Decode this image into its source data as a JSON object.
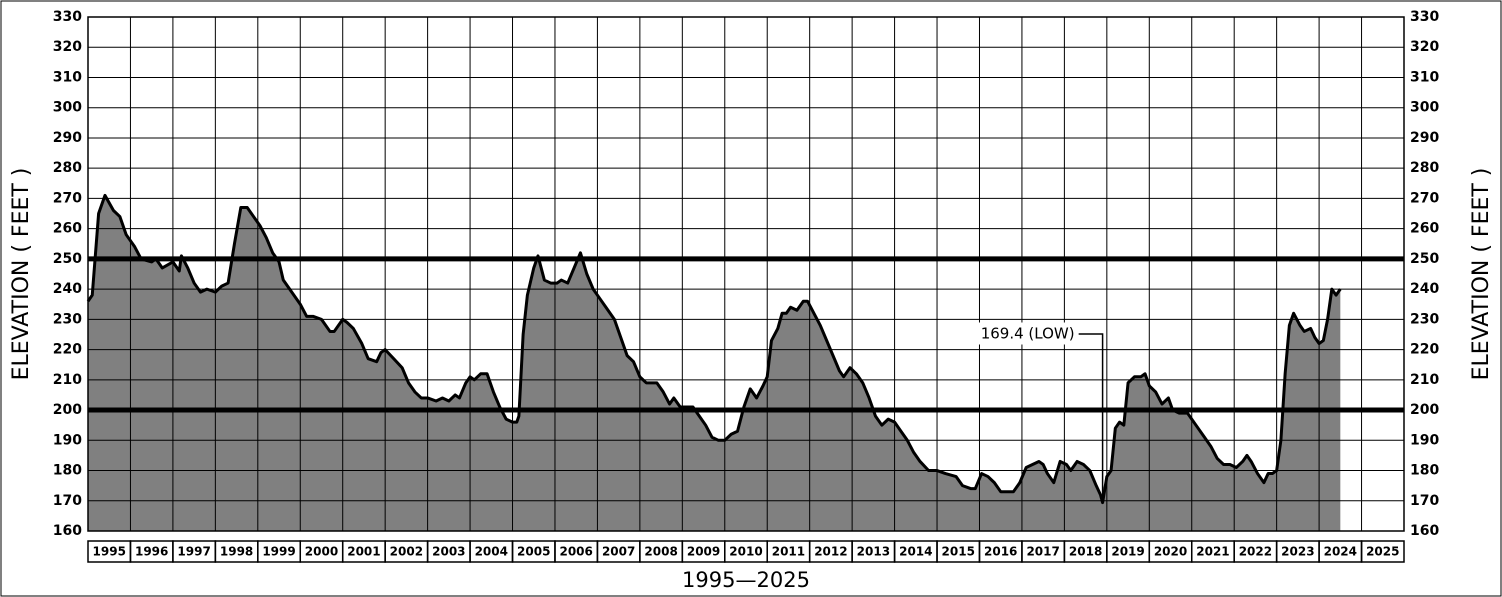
{
  "chart_data": {
    "type": "area",
    "y_label": "ELEVATION ( FEET )",
    "x_label": "1995—2025",
    "xlim": [
      1995,
      2026
    ],
    "xticks": [
      1995,
      1996,
      1997,
      1998,
      1999,
      2000,
      2001,
      2002,
      2003,
      2004,
      2005,
      2006,
      2007,
      2008,
      2009,
      2010,
      2011,
      2012,
      2013,
      2014,
      2015,
      2016,
      2017,
      2018,
      2019,
      2020,
      2021,
      2022,
      2023,
      2024,
      2025
    ],
    "ylim": [
      160,
      330
    ],
    "yticks": [
      160,
      170,
      180,
      190,
      200,
      210,
      220,
      230,
      240,
      250,
      260,
      270,
      280,
      290,
      300,
      310,
      320,
      330
    ],
    "grid": true,
    "color": "#808080",
    "line_color": "#000000",
    "reference_lines": [
      250,
      200
    ],
    "annotation": {
      "text": "169.4 (LOW)",
      "x": 2018.9,
      "value": 169.4
    },
    "x": [
      1995.0,
      1995.1,
      1995.25,
      1995.4,
      1995.6,
      1995.75,
      1995.9,
      1996.1,
      1996.25,
      1996.5,
      1996.6,
      1996.75,
      1997.0,
      1997.15,
      1997.2,
      1997.35,
      1997.5,
      1997.65,
      1997.8,
      1998.0,
      1998.15,
      1998.3,
      1998.45,
      1998.6,
      1998.75,
      1998.9,
      1999.05,
      1999.2,
      1999.35,
      1999.5,
      1999.6,
      1999.8,
      2000.0,
      2000.15,
      2000.3,
      2000.5,
      2000.7,
      2000.8,
      2001.0,
      2001.1,
      2001.25,
      2001.45,
      2001.6,
      2001.8,
      2001.9,
      2002.0,
      2002.2,
      2002.4,
      2002.55,
      2002.7,
      2002.85,
      2003.0,
      2003.2,
      2003.35,
      2003.5,
      2003.65,
      2003.75,
      2003.9,
      2004.0,
      2004.1,
      2004.25,
      2004.4,
      2004.55,
      2004.7,
      2004.85,
      2005.0,
      2005.1,
      2005.15,
      2005.25,
      2005.35,
      2005.5,
      2005.6,
      2005.75,
      2005.9,
      2006.05,
      2006.15,
      2006.3,
      2006.45,
      2006.6,
      2006.75,
      2006.9,
      2007.05,
      2007.2,
      2007.4,
      2007.55,
      2007.7,
      2007.85,
      2008.0,
      2008.15,
      2008.4,
      2008.55,
      2008.7,
      2008.8,
      2008.95,
      2009.1,
      2009.25,
      2009.4,
      2009.55,
      2009.7,
      2009.85,
      2010.0,
      2010.15,
      2010.3,
      2010.45,
      2010.6,
      2010.75,
      2010.9,
      2011.0,
      2011.1,
      2011.25,
      2011.35,
      2011.45,
      2011.55,
      2011.7,
      2011.85,
      2011.95,
      2012.1,
      2012.25,
      2012.4,
      2012.55,
      2012.7,
      2012.8,
      2012.95,
      2013.1,
      2013.25,
      2013.4,
      2013.55,
      2013.7,
      2013.85,
      2014.0,
      2014.15,
      2014.3,
      2014.45,
      2014.6,
      2014.8,
      2015.0,
      2015.2,
      2015.45,
      2015.6,
      2015.8,
      2015.9,
      2016.05,
      2016.2,
      2016.35,
      2016.5,
      2016.65,
      2016.8,
      2016.95,
      2017.1,
      2017.25,
      2017.4,
      2017.5,
      2017.6,
      2017.75,
      2017.9,
      2018.05,
      2018.15,
      2018.3,
      2018.45,
      2018.6,
      2018.75,
      2018.85,
      2018.9,
      2019.0,
      2019.1,
      2019.2,
      2019.3,
      2019.4,
      2019.5,
      2019.65,
      2019.8,
      2019.9,
      2020.0,
      2020.15,
      2020.3,
      2020.45,
      2020.55,
      2020.7,
      2020.9,
      2021.1,
      2021.3,
      2021.45,
      2021.6,
      2021.75,
      2021.9,
      2022.05,
      2022.2,
      2022.3,
      2022.4,
      2022.55,
      2022.7,
      2022.8,
      2022.9,
      2023.0,
      2023.1,
      2023.2,
      2023.3,
      2023.4,
      2023.55,
      2023.65,
      2023.8,
      2023.9,
      2024.0,
      2024.1,
      2024.2,
      2024.3,
      2024.4,
      2024.5
    ],
    "series": [
      {
        "name": "Elevation",
        "values": [
          236,
          238,
          265,
          271,
          266,
          264,
          258,
          254,
          250,
          249,
          250,
          247,
          249,
          246,
          251,
          247,
          242,
          239,
          240,
          239,
          241,
          242,
          255,
          267,
          267,
          264,
          261,
          257,
          252,
          249,
          243,
          239,
          235,
          231,
          231,
          230,
          226,
          226,
          230,
          229,
          227,
          222,
          217,
          216,
          219,
          220,
          217,
          214,
          209,
          206,
          204,
          204,
          203,
          204,
          203,
          205,
          204,
          209,
          211,
          210,
          212,
          212,
          206,
          201,
          197,
          196,
          196,
          198,
          225,
          238,
          247,
          251,
          243,
          242,
          242,
          243,
          242,
          247,
          252,
          245,
          240,
          237,
          234,
          230,
          224,
          218,
          216,
          211,
          209,
          209,
          206,
          202,
          204,
          201,
          201,
          201,
          198,
          195,
          191,
          190,
          190,
          192,
          193,
          201,
          207,
          204,
          208,
          211,
          223,
          227,
          232,
          232,
          234,
          233,
          236,
          236,
          232,
          228,
          223,
          218,
          213,
          211,
          214,
          212,
          209,
          204,
          198,
          195,
          197,
          196,
          193,
          190,
          186,
          183,
          180,
          180,
          179,
          178,
          175,
          174,
          174,
          179,
          178,
          176,
          173,
          173,
          173,
          176,
          181,
          182,
          183,
          182,
          179,
          176,
          183,
          182,
          180,
          183,
          182,
          180,
          175,
          172,
          169.4,
          178,
          180,
          194,
          196,
          195,
          209,
          211,
          211,
          212,
          208,
          206,
          202,
          204,
          200,
          199,
          199,
          195,
          191,
          188,
          184,
          182,
          182,
          181,
          183,
          185,
          183,
          179,
          176,
          179,
          179,
          180,
          190,
          212,
          228,
          232,
          228,
          226,
          227,
          224,
          222,
          223,
          230,
          240,
          238,
          240
        ]
      }
    ]
  }
}
